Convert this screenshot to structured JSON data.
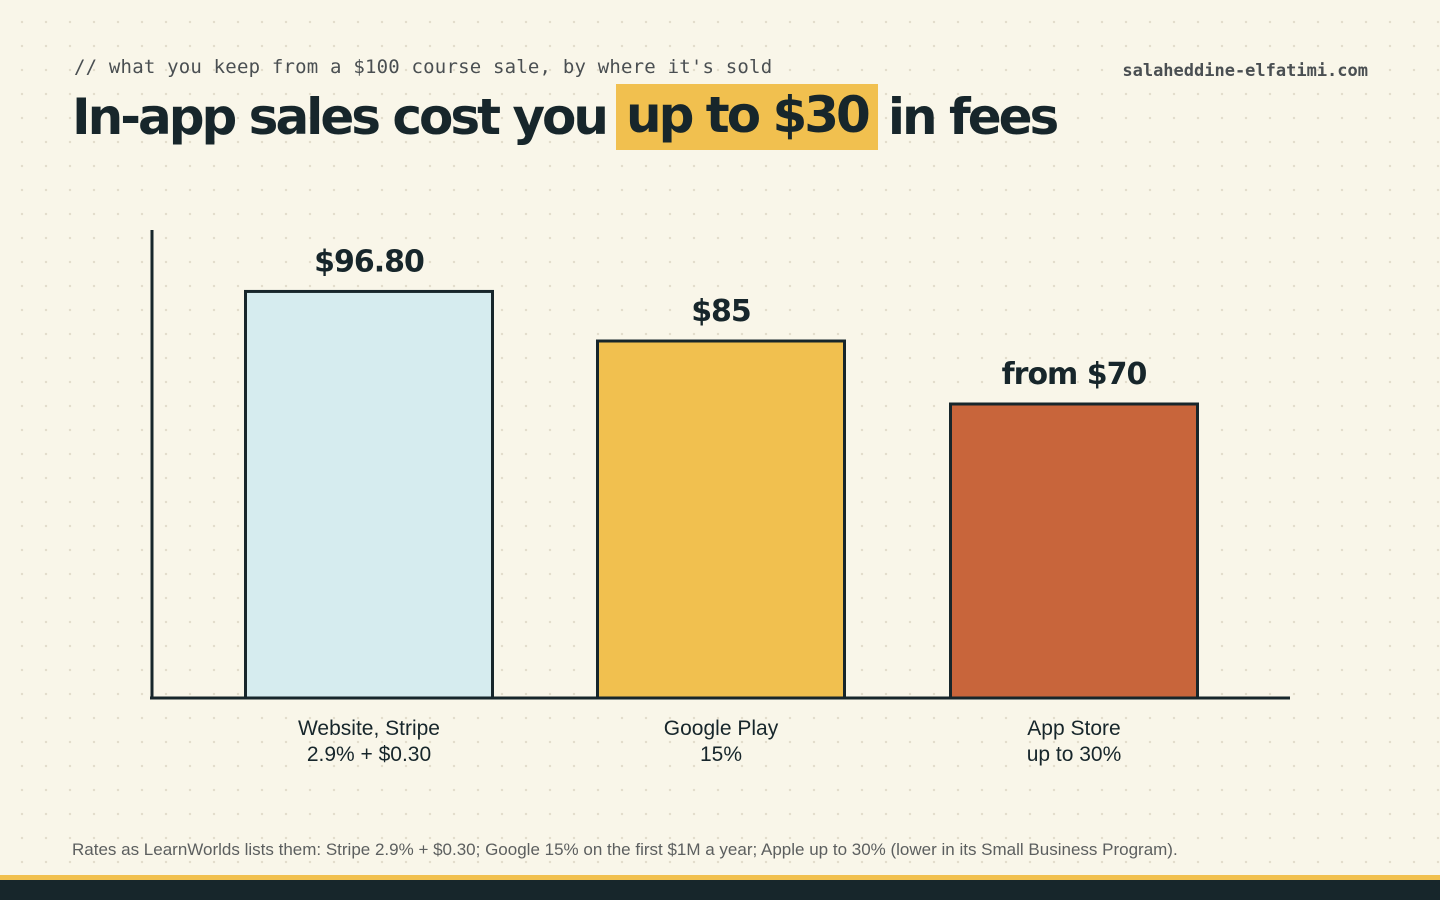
{
  "header": {
    "kicker": "// what you keep from a $100 course sale, by where it's sold",
    "site": "salaheddine-elfatimi.com",
    "title_before": "In-app sales cost you",
    "title_highlight": "up to $30",
    "title_after": "in fees",
    "highlight_color": "#f1c04f"
  },
  "chart_data": {
    "type": "bar",
    "categories": [
      "Website, Stripe",
      "Google Play",
      "App Store"
    ],
    "category_sublabels": [
      "2.9% + $0.30",
      "15%",
      "up to 30%"
    ],
    "values": [
      96.8,
      85,
      70
    ],
    "value_labels": [
      "$96.80",
      "$85",
      "from $70"
    ],
    "colors": [
      "#d6ecef",
      "#f1c04f",
      "#c8653b"
    ],
    "ylim": [
      0,
      110
    ],
    "grid": false,
    "legend": "none"
  },
  "footnote": "Rates as LearnWorlds lists them: Stripe 2.9% + $0.30; Google 15% on the first $1M a year; Apple up to 30% (lower in its Small Business Program)."
}
